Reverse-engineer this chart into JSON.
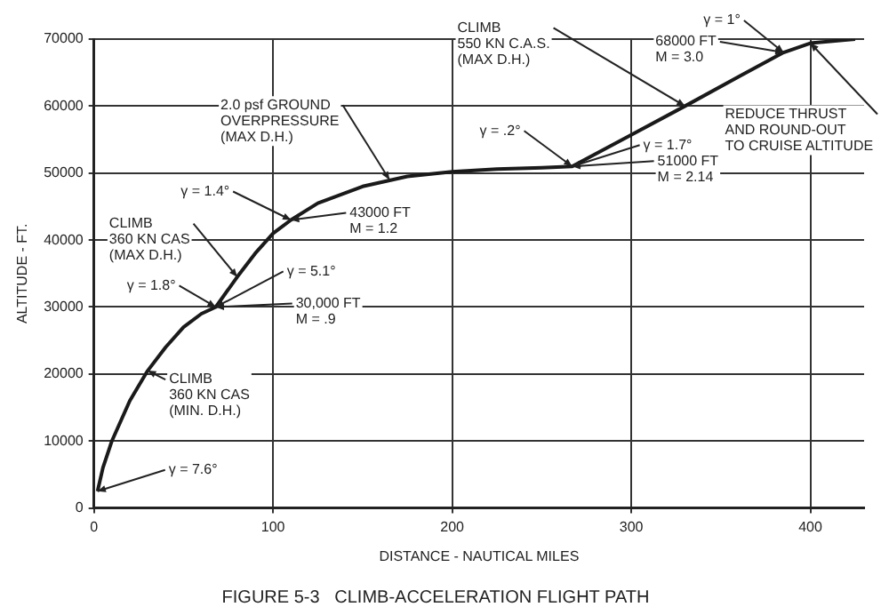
{
  "chart_data": {
    "type": "line",
    "title": "FIGURE 5-3   CLIMB-ACCELERATION FLIGHT PATH",
    "xlabel": "DISTANCE - NAUTICAL MILES",
    "ylabel": "ALTITUDE - FT.",
    "x": [
      2,
      5,
      10,
      20,
      30,
      40,
      50,
      60,
      68,
      80,
      90,
      100,
      110,
      125,
      150,
      175,
      200,
      225,
      250,
      267,
      300,
      330,
      360,
      385,
      400,
      425
    ],
    "series": [
      {
        "color": "#1a1a1a",
        "values": [
          2500,
          6000,
          10000,
          16000,
          20500,
          24000,
          27000,
          29000,
          30000,
          34500,
          38000,
          41000,
          43000,
          45500,
          48000,
          49500,
          50200,
          50600,
          50800,
          51000,
          55700,
          60000,
          64400,
          68000,
          69400,
          70000
        ]
      }
    ],
    "xlim": [
      0,
      430
    ],
    "xticks": [
      0,
      100,
      200,
      300,
      400
    ],
    "ylim": [
      0,
      70000
    ],
    "yticks": [
      0,
      10000,
      20000,
      30000,
      40000,
      50000,
      60000,
      70000
    ],
    "grid": true,
    "legend": false,
    "marker": "none",
    "line_style": "solid",
    "annotations": [
      {
        "text": "γ = 7.6°",
        "x": 2,
        "y": 2500
      },
      {
        "text": "γ = 1.8°",
        "x": 68,
        "y": 30000
      },
      {
        "text": "γ = 5.1°",
        "x": 68,
        "y": 30000
      },
      {
        "text": "30,000 FT\nM = .9",
        "x": 68,
        "y": 30000
      },
      {
        "text": "CLIMB\n360 KN CAS\n(MAX D.H.)",
        "x": 80,
        "y": 34500
      },
      {
        "text": "γ = 1.4°",
        "x": 110,
        "y": 43000
      },
      {
        "text": "43000 FT\nM = 1.2",
        "x": 110,
        "y": 43000
      },
      {
        "text": "2.0 psf GROUND\nOVERPRESSURE\n(MAX D.H.)",
        "x": 165,
        "y": 49000
      },
      {
        "text": "γ = .2°",
        "x": 267,
        "y": 51000
      },
      {
        "text": "γ = 1.7°",
        "x": 267,
        "y": 51000
      },
      {
        "text": "51000 FT\nM = 2.14",
        "x": 267,
        "y": 51000
      },
      {
        "text": "CLIMB\n550 KN C.A.S.\n(MAX D.H.)",
        "x": 330,
        "y": 60000
      },
      {
        "text": "γ = 1°",
        "x": 385,
        "y": 68000
      },
      {
        "text": "68000 FT\nM = 3.0",
        "x": 385,
        "y": 68000
      },
      {
        "text": "REDUCE THRUST\nAND ROUND-OUT\nTO CRUISE ALTITUDE",
        "x": 400,
        "y": 69400
      },
      {
        "text": "CLIMB\n360 KN CAS\n(MIN. D.H.)",
        "x": 30,
        "y": 20500
      }
    ]
  }
}
